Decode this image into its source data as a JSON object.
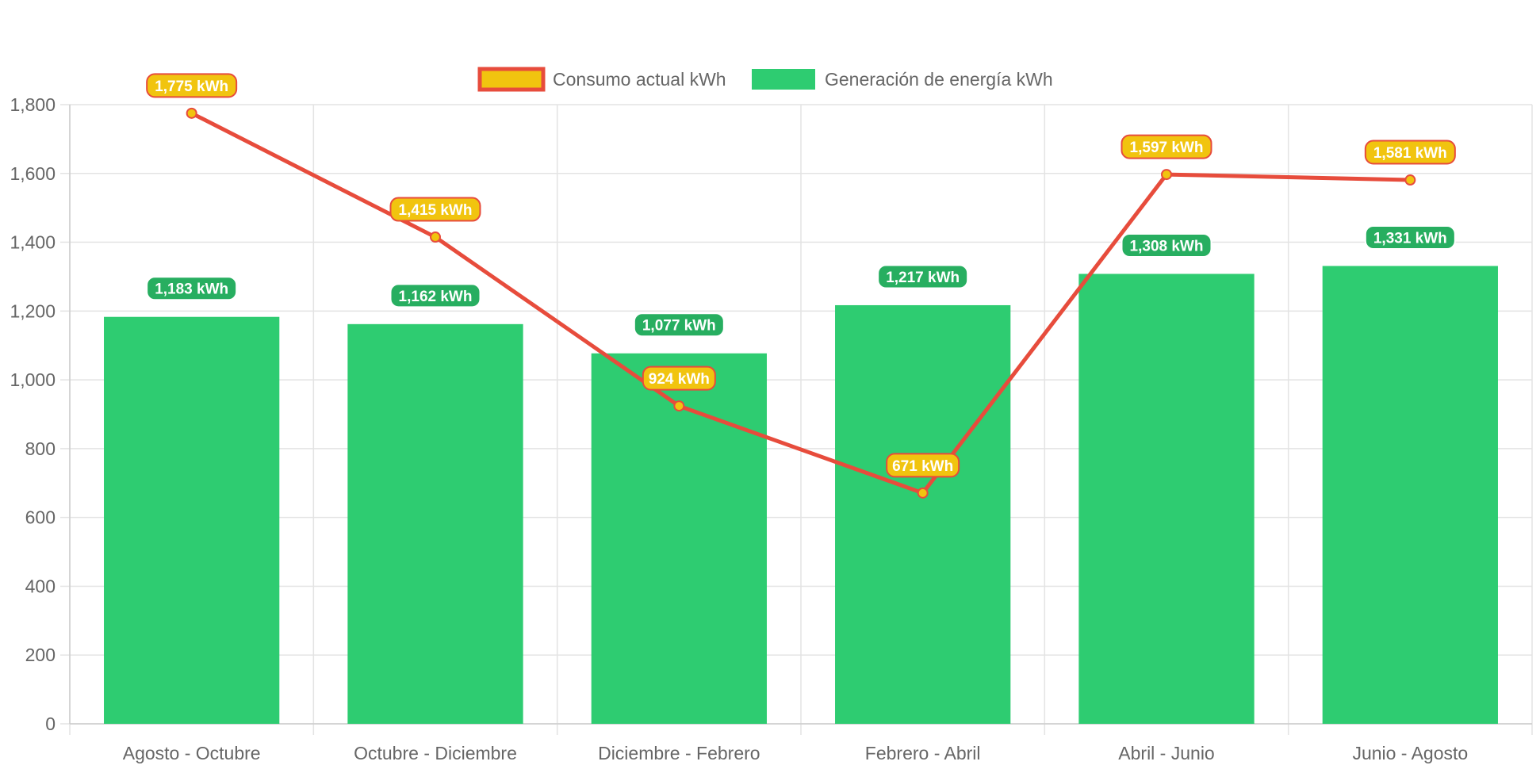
{
  "chart_data": {
    "type": "bar",
    "title": "",
    "xlabel": "",
    "ylabel": "",
    "categories": [
      "Agosto - Octubre",
      "Octubre - Diciembre",
      "Diciembre - Febrero",
      "Febrero - Abril",
      "Abril - Junio",
      "Junio - Agosto"
    ],
    "ylim": [
      0,
      1800
    ],
    "yticks": [
      "0",
      "200",
      "400",
      "600",
      "800",
      "1,000",
      "1,200",
      "1,400",
      "1,600",
      "1,800"
    ],
    "grid": true,
    "legend_position": "top-center",
    "series": [
      {
        "name": "Consumo actual kWh",
        "type": "line",
        "values": [
          1775,
          1415,
          924,
          671,
          1597,
          1581
        ],
        "labels": [
          "1,775 kWh",
          "1,415 kWh",
          "924 kWh",
          "671 kWh",
          "1,597 kWh",
          "1,581 kWh"
        ],
        "color": "#e74c3c",
        "fill_color": "#f1c40f"
      },
      {
        "name": "Generación de energía kWh",
        "type": "bar",
        "values": [
          1183,
          1162,
          1077,
          1217,
          1308,
          1331
        ],
        "labels": [
          "1,183 kWh",
          "1,162 kWh",
          "1,077 kWh",
          "1,217 kWh",
          "1,308 kWh",
          "1,331 kWh"
        ],
        "color": "#2ecc71",
        "label_fill": "#27ae60"
      }
    ]
  }
}
